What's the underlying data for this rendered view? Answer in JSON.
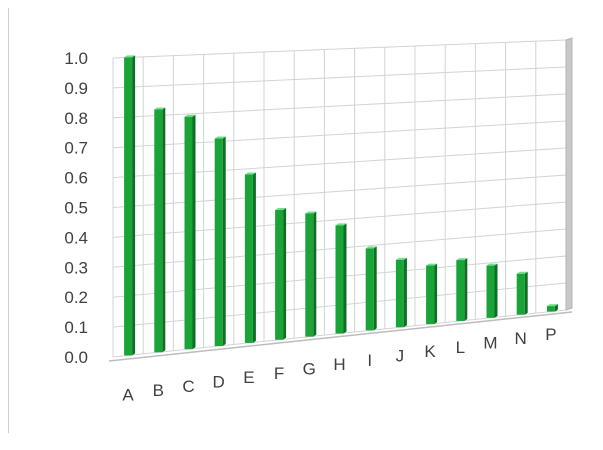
{
  "chart_data": {
    "type": "bar",
    "title": "",
    "xlabel": "",
    "ylabel": "",
    "categories": [
      "A",
      "B",
      "C",
      "D",
      "E",
      "F",
      "G",
      "H",
      "I",
      "J",
      "K",
      "L",
      "M",
      "N",
      "P"
    ],
    "values": [
      1.0,
      0.82,
      0.79,
      0.71,
      0.58,
      0.45,
      0.43,
      0.38,
      0.29,
      0.24,
      0.21,
      0.22,
      0.19,
      0.15,
      0.02
    ],
    "ylim": [
      0,
      1.0
    ],
    "yticks": [
      "0.0",
      "0.1",
      "0.2",
      "0.3",
      "0.4",
      "0.5",
      "0.6",
      "0.7",
      "0.8",
      "0.9",
      "1.0"
    ],
    "grid": true,
    "style": "3d-column",
    "legend": "none",
    "colors": {
      "bar_front": "#1aa337",
      "bar_top": "#6fe08a",
      "bar_side": "#0e6e24",
      "grid": "#d3d3d3",
      "floor": "#bdbdbd"
    }
  }
}
